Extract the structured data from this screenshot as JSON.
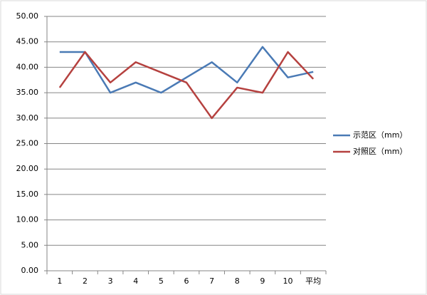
{
  "chart_data": {
    "type": "line",
    "categories": [
      "1",
      "2",
      "3",
      "4",
      "5",
      "6",
      "7",
      "8",
      "9",
      "10",
      "平均"
    ],
    "series": [
      {
        "name": "示范区（mm）",
        "color": "#4a7ab5",
        "values": [
          43,
          43,
          35,
          37,
          35,
          38,
          41,
          37,
          44,
          38,
          39.1
        ]
      },
      {
        "name": "对照区（mm）",
        "color": "#b5413f",
        "values": [
          36,
          43,
          37,
          41,
          39,
          37,
          30,
          36,
          35,
          43,
          37.7
        ]
      }
    ],
    "ylim": [
      0,
      50
    ],
    "yticks": [
      {
        "value": 0,
        "label": "0.00"
      },
      {
        "value": 5,
        "label": "5.00"
      },
      {
        "value": 10,
        "label": "10.00"
      },
      {
        "value": 15,
        "label": "15.00"
      },
      {
        "value": 20,
        "label": "20.00"
      },
      {
        "value": 25,
        "label": "25.00"
      },
      {
        "value": 30,
        "label": "30.00"
      },
      {
        "value": 35,
        "label": "35.00"
      },
      {
        "value": 40,
        "label": "40.00"
      },
      {
        "value": 45,
        "label": "45.00"
      },
      {
        "value": 50,
        "label": "50.00"
      }
    ],
    "grid": true,
    "legend": "right"
  }
}
